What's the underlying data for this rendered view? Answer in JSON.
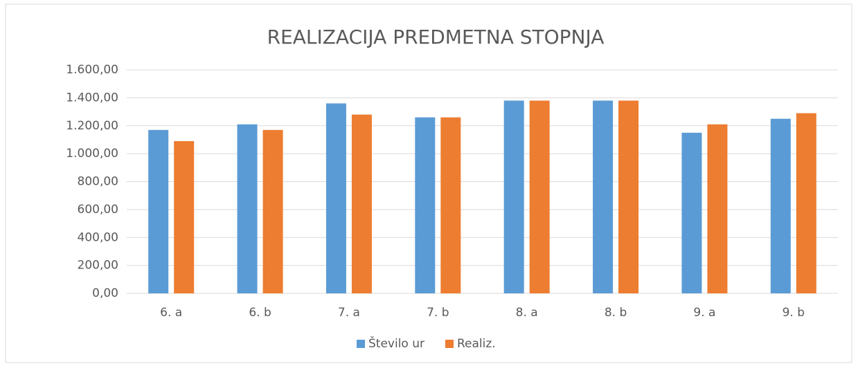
{
  "chart_data": {
    "type": "bar",
    "title": "REALIZACIJA PREDMETNA STOPNJA",
    "categories": [
      "6. a",
      "6. b",
      "7. a",
      "7. b",
      "8. a",
      "8. b",
      "9. a",
      "9. b"
    ],
    "series": [
      {
        "name": "Število ur",
        "color": "#5b9bd5",
        "values": [
          1170,
          1210,
          1360,
          1260,
          1380,
          1380,
          1150,
          1250
        ]
      },
      {
        "name": "Realiz.",
        "color": "#ed7d31",
        "values": [
          1090,
          1170,
          1280,
          1260,
          1380,
          1380,
          1210,
          1290
        ]
      }
    ],
    "ylim": [
      0,
      1600
    ],
    "yticks": [
      {
        "value": 0,
        "label": "0,00"
      },
      {
        "value": 200,
        "label": "200,00"
      },
      {
        "value": 400,
        "label": "400,00"
      },
      {
        "value": 600,
        "label": "600,00"
      },
      {
        "value": 800,
        "label": "800,00"
      },
      {
        "value": 1000,
        "label": "1.000,00"
      },
      {
        "value": 1200,
        "label": "1.200,00"
      },
      {
        "value": 1400,
        "label": "1.400,00"
      },
      {
        "value": 1600,
        "label": "1.600,00"
      }
    ],
    "grid": true,
    "legend": "bottom"
  }
}
